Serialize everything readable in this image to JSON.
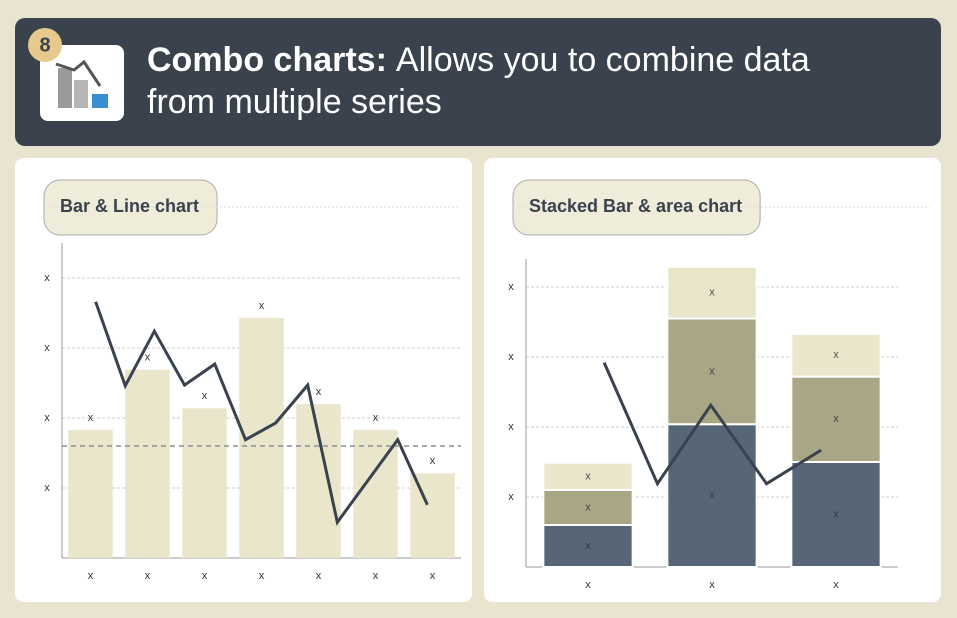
{
  "header": {
    "badge": "8",
    "title_bold": "Combo charts:",
    "title_lines": [
      "Allows you to combine data",
      "from multiple series"
    ]
  },
  "chart_data": [
    {
      "type": "combo",
      "title": "Bar & Line chart",
      "categories": [
        "x",
        "x",
        "x",
        "x",
        "x",
        "x",
        "x"
      ],
      "series": [
        {
          "type": "bar",
          "color": "#e9e6cc",
          "values": [
            1.83,
            2.69,
            2.14,
            3.43,
            2.2,
            1.83,
            1.21
          ],
          "value_labels": [
            "x",
            "x",
            "x",
            "x",
            "x",
            "x",
            "x"
          ]
        },
        {
          "type": "line",
          "color": "#3a434d",
          "x": [
            0.09,
            0.61,
            1.12,
            1.65,
            2.18,
            2.72,
            3.25,
            3.81,
            4.33,
            4.86,
            5.39,
            5.91
          ],
          "values": [
            3.66,
            2.46,
            3.24,
            2.47,
            2.77,
            1.69,
            1.93,
            2.47,
            0.51,
            1.1,
            1.69,
            0.76
          ]
        }
      ],
      "reference_line": 1.6,
      "ylim": [
        0,
        4.5
      ],
      "yticks": [
        {
          "value": 1,
          "label": "x"
        },
        {
          "value": 2,
          "label": "x"
        },
        {
          "value": 3,
          "label": "x"
        },
        {
          "value": 4,
          "label": "x"
        }
      ],
      "grid": true
    },
    {
      "type": "combo",
      "title": "Stacked Bar & area chart",
      "categories": [
        "x",
        "x",
        "x"
      ],
      "series": [
        {
          "type": "stacked_bar",
          "color": "#566676",
          "values": [
            0.6,
            2.04,
            1.5
          ],
          "value_labels": [
            "x",
            "x",
            "x"
          ]
        },
        {
          "type": "stacked_bar",
          "color": "#a8a684",
          "values": [
            0.5,
            1.51,
            1.22
          ],
          "value_labels": [
            "x",
            "x",
            "x"
          ]
        },
        {
          "type": "stacked_bar",
          "color": "#e9e6cc",
          "values": [
            0.39,
            0.74,
            0.61
          ],
          "value_labels": [
            "x",
            "x",
            "x"
          ]
        },
        {
          "type": "line",
          "color": "#3a434d",
          "x": [
            0.13,
            0.56,
            0.99,
            1.44,
            1.88
          ],
          "values": [
            2.92,
            1.19,
            2.31,
            1.19,
            1.67
          ]
        }
      ],
      "ylim": [
        0,
        4.4
      ],
      "yticks": [
        {
          "value": 1,
          "label": "x"
        },
        {
          "value": 2,
          "label": "x"
        },
        {
          "value": 3,
          "label": "x"
        },
        {
          "value": 4,
          "label": "x"
        }
      ],
      "grid": true
    }
  ]
}
